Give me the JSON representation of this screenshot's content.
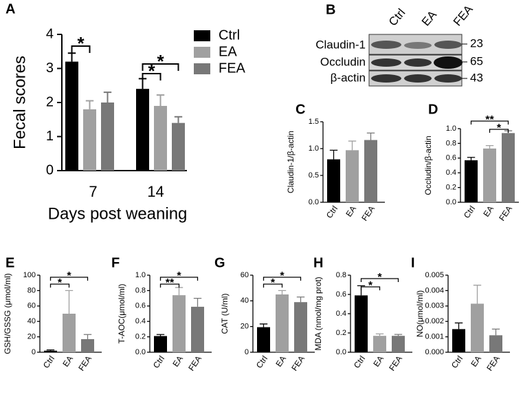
{
  "chart_data": [
    {
      "type": "bar",
      "panel": "A",
      "ylabel": "Fecal scores",
      "xlabel": "Days post weaning",
      "categories": [
        "7",
        "14"
      ],
      "series": [
        {
          "name": "Ctrl",
          "color": "#000000",
          "values": [
            3.2,
            2.4
          ],
          "errors": [
            0.25,
            0.3
          ]
        },
        {
          "name": "EA",
          "color": "#a0a0a0",
          "values": [
            1.8,
            1.9
          ],
          "errors": [
            0.25,
            0.32
          ]
        },
        {
          "name": "FEA",
          "color": "#787878",
          "values": [
            2.0,
            1.4
          ],
          "errors": [
            0.3,
            0.18
          ]
        }
      ],
      "ylim": [
        0,
        4
      ],
      "yticks": [
        0,
        1,
        2,
        3,
        4
      ],
      "annotations": [
        {
          "text": "*"
        },
        {
          "text": "*"
        },
        {
          "text": "*"
        }
      ]
    },
    {
      "type": "bar",
      "panel": "C",
      "ylabel": "Claudin-1/β-actin",
      "categories": [
        "Ctrl",
        "EA",
        "FEA"
      ],
      "colors": [
        "#000000",
        "#a0a0a0",
        "#787878"
      ],
      "values": [
        0.8,
        0.97,
        1.16
      ],
      "errors": [
        0.17,
        0.17,
        0.13
      ],
      "ylim": [
        0,
        1.5
      ],
      "yticks": [
        {
          "value": 0,
          "label": "0.0"
        },
        {
          "value": 0.5,
          "label": "0.5"
        },
        {
          "value": 1,
          "label": "1.0"
        },
        {
          "value": 1.5,
          "label": "1.5"
        }
      ],
      "annotations": []
    },
    {
      "type": "bar",
      "panel": "D",
      "ylabel": "Occludin/β-actin",
      "categories": [
        "Ctrl",
        "EA",
        "FEA"
      ],
      "colors": [
        "#000000",
        "#a0a0a0",
        "#787878"
      ],
      "values": [
        0.57,
        0.73,
        0.94
      ],
      "errors": [
        0.04,
        0.04,
        0.03
      ],
      "ylim": [
        0,
        1
      ],
      "yticks": [
        {
          "value": 0,
          "label": "0.0"
        },
        {
          "value": 0.2,
          "label": "0.2"
        },
        {
          "value": 0.4,
          "label": "0.4"
        },
        {
          "value": 0.6,
          "label": "0.6"
        },
        {
          "value": 0.8,
          "label": "0.8"
        },
        {
          "value": 1,
          "label": "1.0"
        }
      ],
      "annotations": [
        {
          "text": "**"
        },
        {
          "text": "*"
        }
      ]
    },
    {
      "type": "bar",
      "panel": "E",
      "ylabel": "GSH/GSSG (μmol/ml)",
      "categories": [
        "Ctrl",
        "EA",
        "FEA"
      ],
      "colors": [
        "#000000",
        "#a0a0a0",
        "#787878"
      ],
      "values": [
        2,
        50,
        17
      ],
      "errors": [
        1,
        30,
        6
      ],
      "ylim": [
        0,
        100
      ],
      "yticks": [
        0,
        20,
        40,
        60,
        80,
        100
      ],
      "annotations": [
        {
          "text": "*"
        },
        {
          "text": "*"
        }
      ]
    },
    {
      "type": "bar",
      "panel": "F",
      "ylabel": "T-AOC(μmol/ml)",
      "categories": [
        "Ctrl",
        "EA",
        "FEA"
      ],
      "colors": [
        "#000000",
        "#a0a0a0",
        "#787878"
      ],
      "values": [
        0.21,
        0.74,
        0.59
      ],
      "errors": [
        0.02,
        0.1,
        0.11
      ],
      "ylim": [
        0,
        1
      ],
      "yticks": [
        {
          "value": 0,
          "label": "0.0"
        },
        {
          "value": 0.2,
          "label": "0.2"
        },
        {
          "value": 0.4,
          "label": "0.4"
        },
        {
          "value": 0.6,
          "label": "0.6"
        },
        {
          "value": 0.8,
          "label": "0.8"
        },
        {
          "value": 1,
          "label": "1.0"
        }
      ],
      "annotations": [
        {
          "text": "**"
        },
        {
          "text": "*"
        }
      ]
    },
    {
      "type": "bar",
      "panel": "G",
      "ylabel": "CAT (U/ml)",
      "categories": [
        "Ctrl",
        "EA",
        "FEA"
      ],
      "colors": [
        "#000000",
        "#a0a0a0",
        "#787878"
      ],
      "values": [
        19.5,
        45,
        39
      ],
      "errors": [
        2.5,
        3,
        4
      ],
      "ylim": [
        0,
        60
      ],
      "yticks": [
        0,
        20,
        40,
        60
      ],
      "annotations": [
        {
          "text": "*"
        },
        {
          "text": "*"
        }
      ]
    },
    {
      "type": "bar",
      "panel": "H",
      "ylabel": "MDA (nmol/mg prot)",
      "categories": [
        "Ctrl",
        "EA",
        "FEA"
      ],
      "colors": [
        "#000000",
        "#a0a0a0",
        "#787878"
      ],
      "values": [
        0.59,
        0.17,
        0.17
      ],
      "errors": [
        0.1,
        0.02,
        0.015
      ],
      "ylim": [
        0,
        0.8
      ],
      "yticks": [
        {
          "value": 0,
          "label": "0.0"
        },
        {
          "value": 0.2,
          "label": "0.2"
        },
        {
          "value": 0.4,
          "label": "0.4"
        },
        {
          "value": 0.6,
          "label": "0.6"
        },
        {
          "value": 0.8,
          "label": "0.8"
        }
      ],
      "annotations": [
        {
          "text": "*"
        },
        {
          "text": "*"
        }
      ]
    },
    {
      "type": "bar",
      "panel": "I",
      "ylabel": "NO(μmol/ml)",
      "categories": [
        "Ctrl",
        "EA",
        "FEA"
      ],
      "colors": [
        "#000000",
        "#a0a0a0",
        "#787878"
      ],
      "values": [
        0.0015,
        0.00315,
        0.0011
      ],
      "errors": [
        0.0004,
        0.0012,
        0.0004
      ],
      "ylim": [
        0,
        0.005
      ],
      "yticks": [
        {
          "value": 0,
          "label": "0.000"
        },
        {
          "value": 0.001,
          "label": "0.001"
        },
        {
          "value": 0.002,
          "label": "0.002"
        },
        {
          "value": 0.003,
          "label": "0.003"
        },
        {
          "value": 0.004,
          "label": "0.004"
        },
        {
          "value": 0.005,
          "label": "0.005"
        }
      ],
      "annotations": []
    }
  ],
  "blot": {
    "panel": "B",
    "lanes": [
      "Ctrl",
      "EA",
      "FEA"
    ],
    "proteins": [
      "Claudin-1",
      "Occludin",
      "β-actin"
    ],
    "sizes": [
      "23",
      "65",
      "43"
    ]
  }
}
